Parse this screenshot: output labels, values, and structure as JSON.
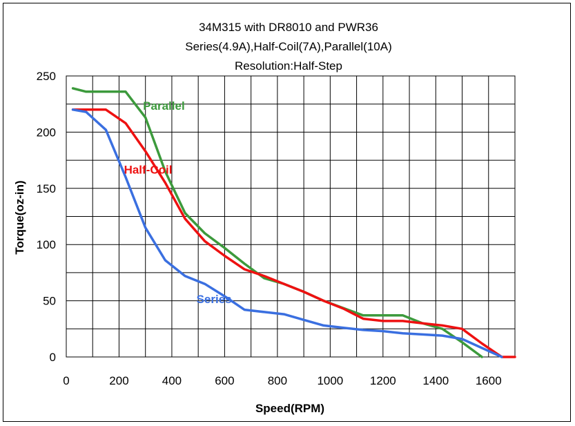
{
  "chart_data": {
    "type": "line",
    "title_lines": [
      "34M315 with DR8010 and PWR36",
      "Series(4.9A),Half-Coil(7A),Parallel(10A)",
      "Resolution:Half-Step"
    ],
    "xlabel": "Speed(RPM)",
    "ylabel": "Torque(oz-in)",
    "xlim": [
      0,
      1700
    ],
    "ylim": [
      0,
      250
    ],
    "x_ticks": [
      0,
      200,
      400,
      600,
      800,
      1000,
      1200,
      1400,
      1600
    ],
    "y_ticks": [
      0,
      50,
      100,
      150,
      200,
      250
    ],
    "grid": true,
    "series": [
      {
        "name": "Parallel",
        "color": "#3c9a3c",
        "x": [
          25,
          75,
          225,
          300,
          375,
          450,
          525,
          600,
          675,
          750,
          825,
          900,
          975,
          1125,
          1275,
          1350,
          1425,
          1500,
          1575
        ],
        "y": [
          239,
          236,
          236,
          213,
          165,
          128,
          110,
          97,
          83,
          70,
          65,
          58,
          50,
          37,
          37,
          30,
          25,
          13,
          0
        ]
      },
      {
        "name": "Half-Coil",
        "color": "#ee1111",
        "x": [
          25,
          150,
          225,
          300,
          375,
          450,
          525,
          600,
          675,
          750,
          825,
          900,
          975,
          1050,
          1125,
          1200,
          1275,
          1350,
          1425,
          1500,
          1575,
          1650,
          1700
        ],
        "y": [
          220,
          220,
          208,
          183,
          155,
          123,
          103,
          90,
          78,
          72,
          65,
          58,
          50,
          43,
          34,
          32,
          32,
          30,
          28,
          25,
          12,
          0,
          0
        ]
      },
      {
        "name": "Series",
        "color": "#3a6fe0",
        "x": [
          25,
          75,
          150,
          225,
          300,
          375,
          450,
          525,
          600,
          675,
          750,
          825,
          900,
          975,
          1050,
          1125,
          1200,
          1275,
          1350,
          1425,
          1500,
          1575,
          1650
        ],
        "y": [
          220,
          218,
          202,
          160,
          115,
          86,
          72,
          65,
          54,
          42,
          40,
          38,
          33,
          28,
          26,
          24,
          23,
          21,
          20,
          19,
          16,
          8,
          0
        ]
      }
    ]
  }
}
